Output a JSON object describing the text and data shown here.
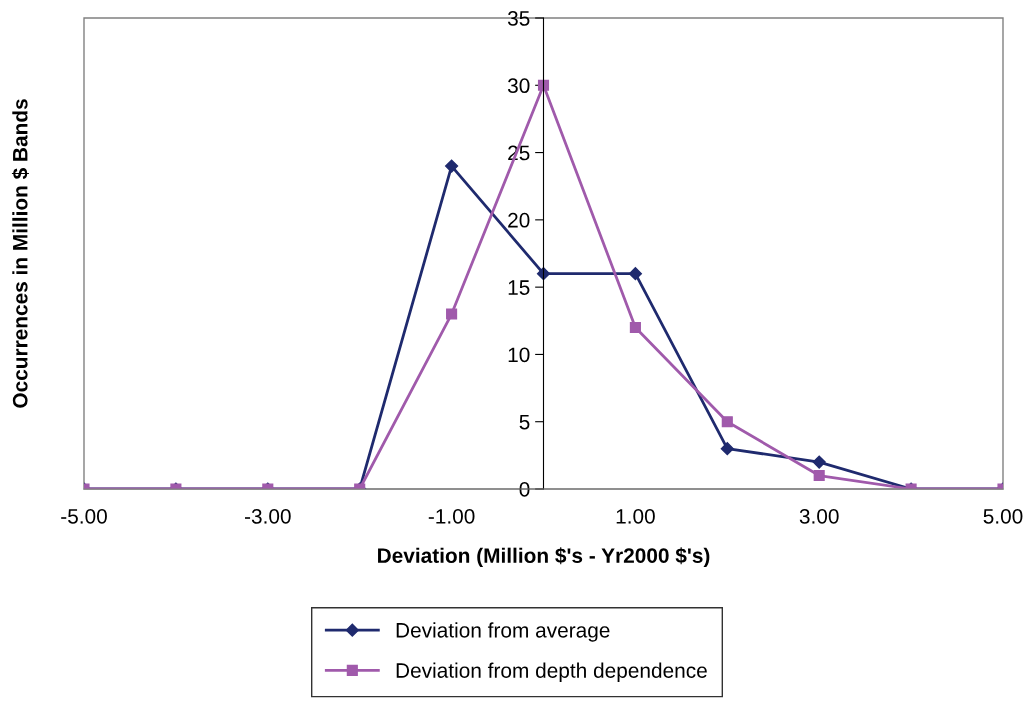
{
  "chart_data": {
    "type": "line",
    "xlabel": "Deviation (Million $'s - Yr2000 $'s)",
    "ylabel": "Occurrences in Million $ Bands",
    "x": [
      -5,
      -4,
      -3,
      -2,
      -1,
      0,
      1,
      2,
      3,
      4,
      5
    ],
    "series": [
      {
        "name": "Deviation from average",
        "color": "#1f2a6e",
        "marker": "diamond",
        "values": [
          0,
          0,
          0,
          0,
          24,
          16,
          16,
          3,
          2,
          0,
          0
        ]
      },
      {
        "name": "Deviation from depth dependence",
        "color": "#a05aab",
        "marker": "square",
        "values": [
          0,
          0,
          0,
          0,
          13,
          30,
          12,
          5,
          1,
          0,
          0
        ]
      }
    ],
    "xlim": [
      -5,
      5
    ],
    "xticks": [
      {
        "value": -5,
        "label": "-5.00"
      },
      {
        "value": -3,
        "label": "-3.00"
      },
      {
        "value": -1,
        "label": "-1.00"
      },
      {
        "value": 1,
        "label": "1.00"
      },
      {
        "value": 3,
        "label": "3.00"
      },
      {
        "value": 5,
        "label": "5.00"
      }
    ],
    "ylim": [
      0,
      35
    ],
    "yticks": [
      0,
      5,
      10,
      15,
      20,
      25,
      30,
      35
    ],
    "grid": false,
    "legend": "bottom",
    "line_style": "solid"
  }
}
